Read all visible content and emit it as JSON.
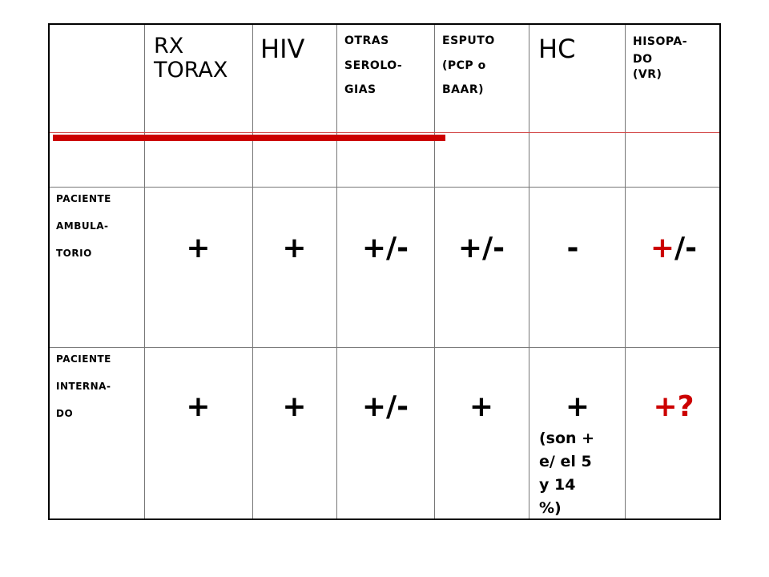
{
  "table": {
    "headers": {
      "rx_line1": "RX",
      "rx_line2": "TORAX",
      "hiv": "HIV",
      "otras_line1": "OTRAS",
      "otras_line2": "SEROLO-",
      "otras_line3": "GIAS",
      "esputo_line1": "ESPUTO",
      "esputo_line2": "(PCP o",
      "esputo_line3": "BAAR)",
      "hc": "HC",
      "hisopado_line1": "HISOPA-",
      "hisopado_line2": "DO",
      "hisopado_line3": "(VR)"
    },
    "rows": [
      {
        "label_line1": "PACIENTE",
        "label_line2": "AMBULA-",
        "label_line3": "TORIO",
        "rx": "+",
        "hiv": "+",
        "otras": "+/-",
        "esputo": "+/-",
        "hc": "-",
        "hisopado_plus": "+",
        "hisopado_rest": "/-"
      },
      {
        "label_line1": "PACIENTE",
        "label_line2": "INTERNA-",
        "label_line3": "DO",
        "rx": "+",
        "hiv": "+",
        "otras": "+/-",
        "esputo": "+",
        "hc": "+",
        "hc_note_line1": "(son +",
        "hc_note_line2": "e/ el 5",
        "hc_note_line3": "y 14",
        "hc_note_line4": "%)",
        "hisopado": "+?"
      }
    ],
    "accent_color": "#cc0000"
  }
}
